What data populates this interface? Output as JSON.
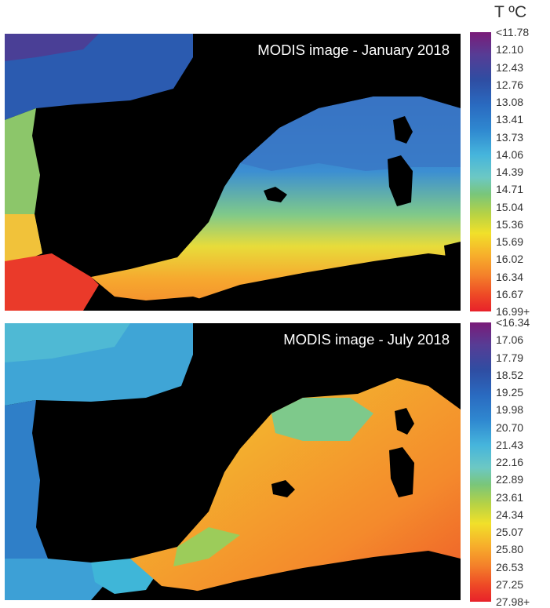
{
  "legend_title": "T ºC",
  "panels": [
    {
      "title": "MODIS image - January 2018",
      "scale": [
        "<11.78",
        "12.10",
        "12.43",
        "12.76",
        "13.08",
        "13.41",
        "13.73",
        "14.06",
        "14.39",
        "14.71",
        "15.04",
        "15.36",
        "15.69",
        "16.02",
        "16.34",
        "16.67",
        "16.99+"
      ]
    },
    {
      "title": "MODIS image - July 2018",
      "scale": [
        "<16.34",
        "17.06",
        "17.79",
        "18.52",
        "19.25",
        "19.98",
        "20.70",
        "21.43",
        "22.16",
        "22.89",
        "23.61",
        "24.34",
        "25.07",
        "25.80",
        "26.53",
        "27.25",
        "27.98+"
      ]
    }
  ],
  "colors": {
    "land": "#000000",
    "cold_end": "#7a1b78",
    "warm_end": "#e8212a"
  }
}
